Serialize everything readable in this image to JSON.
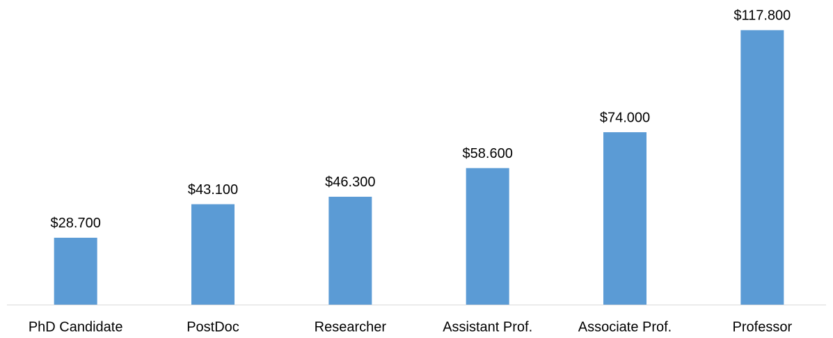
{
  "chart_data": {
    "type": "bar",
    "categories": [
      "PhD Candidate",
      "PostDoc",
      "Researcher",
      "Assistant Prof.",
      "Associate Prof.",
      "Professor"
    ],
    "values": [
      28700,
      43100,
      46300,
      58600,
      74000,
      117800
    ],
    "value_labels": [
      "$28.700",
      "$43.100",
      "$46.300",
      "$58.600",
      "$74.000",
      "$117.800"
    ],
    "color": "#5b9bd5",
    "ylim": [
      0,
      120000
    ]
  }
}
